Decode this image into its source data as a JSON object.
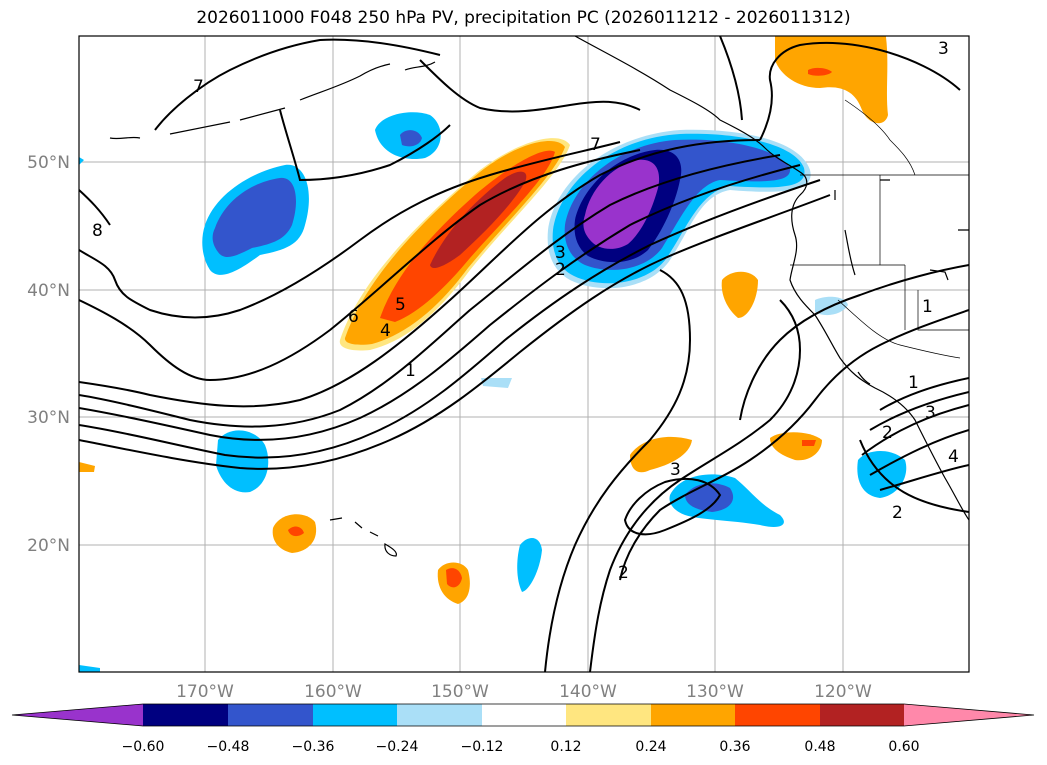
{
  "title": "2026011000 F048 250 hPa PV, precipitation PC (2026011212 - 2026011312)",
  "lat_labels": [
    "50°N",
    "40°N",
    "30°N",
    "20°N"
  ],
  "lon_labels": [
    "170°W",
    "160°W",
    "150°W",
    "140°W",
    "130°W",
    "120°W"
  ],
  "colorbar": {
    "colors": [
      "#9933cc",
      "#000080",
      "#3355cc",
      "#00bfff",
      "#aadff7",
      "#ffffff",
      "#ffe680",
      "#ffa500",
      "#ff4500",
      "#b22222",
      "#ff88aa"
    ],
    "tick_labels": [
      "−0.60",
      "−0.48",
      "−0.36",
      "−0.24",
      "−0.12",
      "0.12",
      "0.24",
      "0.36",
      "0.48",
      "0.60"
    ]
  },
  "contour_labels": [
    "1",
    "2",
    "3",
    "4",
    "5",
    "6",
    "7",
    "8",
    "1",
    "2",
    "3",
    "2",
    "3",
    "4",
    "1",
    "2",
    "3",
    "7"
  ]
}
